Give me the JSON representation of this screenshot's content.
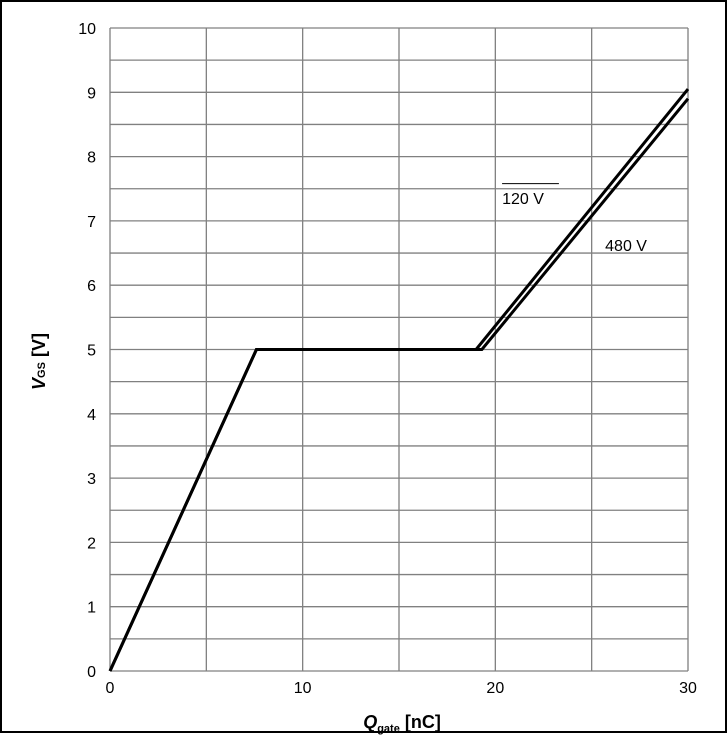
{
  "chart_data": {
    "type": "line",
    "xlabel": {
      "main": "Q",
      "sub": "gate",
      "unit": " [nC]"
    },
    "ylabel": {
      "main": "V",
      "sub": "GS",
      "unit": " [V]"
    },
    "xlim": [
      0,
      30
    ],
    "ylim": [
      0,
      10
    ],
    "x_ticks": [
      0,
      10,
      20,
      30
    ],
    "y_ticks": [
      0,
      1,
      2,
      3,
      4,
      5,
      6,
      7,
      8,
      9,
      10
    ],
    "x_gridlines": [
      0,
      5,
      10,
      15,
      20,
      25,
      30
    ],
    "y_gridlines": [
      0,
      0.5,
      1,
      1.5,
      2,
      2.5,
      3,
      3.5,
      4,
      4.5,
      5,
      5.5,
      6,
      6.5,
      7,
      7.5,
      8,
      8.5,
      9,
      9.5,
      10
    ],
    "grid": true,
    "legend": "none",
    "series": [
      {
        "name": "120 V",
        "x": [
          0,
          7.6,
          19.0,
          30.0
        ],
        "y": [
          0,
          5.0,
          5.0,
          9.05
        ]
      },
      {
        "name": "480 V",
        "x": [
          0,
          7.6,
          19.3,
          30.0
        ],
        "y": [
          0,
          5.0,
          5.0,
          8.9
        ]
      }
    ],
    "annotations": [
      {
        "text": "120 V",
        "series": "120 V"
      },
      {
        "text": "480 V",
        "series": "480 V"
      }
    ],
    "colors": {
      "line": "#000000",
      "grid": "#808080",
      "frame": "#000000",
      "background": "#ffffff"
    }
  }
}
